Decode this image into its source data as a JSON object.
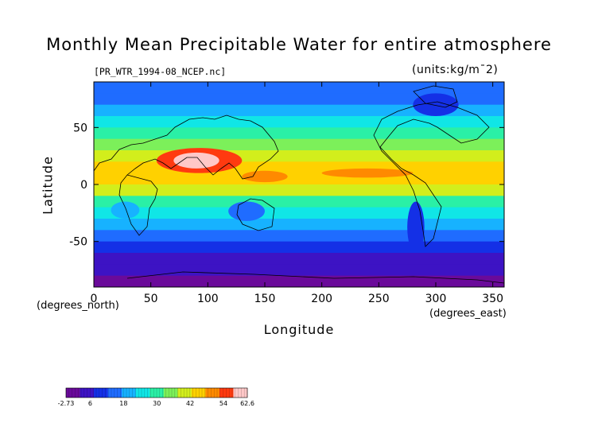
{
  "chart_data": {
    "type": "heatmap",
    "title": "Monthly Mean Precipitable Water for entire atmosphere",
    "subtitle": "[PR_WTR_1994-08_NCEP.nc]",
    "units_label": "(units:kg/m¯2)",
    "xlabel": "Longitude",
    "ylabel": "Latitude",
    "x_unit": "(degrees_east)",
    "y_unit": "(degrees_north)",
    "xlim": [
      0,
      360
    ],
    "ylim": [
      -90,
      90
    ],
    "x_ticks": [
      0,
      50,
      100,
      150,
      200,
      250,
      300,
      350
    ],
    "y_ticks": [
      -50,
      0,
      50
    ],
    "lat_profile": [
      {
        "lat": 90,
        "value": 12
      },
      {
        "lat": 80,
        "value": 13
      },
      {
        "lat": 70,
        "value": 17
      },
      {
        "lat": 60,
        "value": 21
      },
      {
        "lat": 50,
        "value": 25
      },
      {
        "lat": 40,
        "value": 30
      },
      {
        "lat": 30,
        "value": 38
      },
      {
        "lat": 20,
        "value": 44
      },
      {
        "lat": 10,
        "value": 47
      },
      {
        "lat": 0,
        "value": 42
      },
      {
        "lat": -10,
        "value": 35
      },
      {
        "lat": -20,
        "value": 28
      },
      {
        "lat": -30,
        "value": 22
      },
      {
        "lat": -40,
        "value": 17
      },
      {
        "lat": -50,
        "value": 13
      },
      {
        "lat": -60,
        "value": 9
      },
      {
        "lat": -70,
        "value": 4
      },
      {
        "lat": -80,
        "value": 1
      },
      {
        "lat": -90,
        "value": 0
      }
    ],
    "regions": [
      {
        "lon": [
          55,
          130
        ],
        "lat": [
          10,
          32
        ],
        "value": 56
      },
      {
        "lon": [
          70,
          110
        ],
        "lat": [
          14,
          28
        ],
        "value": 60
      },
      {
        "lon": [
          130,
          170
        ],
        "lat": [
          2,
          12
        ],
        "value": 52
      },
      {
        "lon": [
          200,
          280
        ],
        "lat": [
          6,
          14
        ],
        "value": 51
      },
      {
        "lon": [
          275,
          290
        ],
        "lat": [
          -60,
          -15
        ],
        "value": 10
      },
      {
        "lon": [
          15,
          40
        ],
        "lat": [
          -30,
          -15
        ],
        "value": 18
      },
      {
        "lon": [
          118,
          150
        ],
        "lat": [
          -32,
          -15
        ],
        "value": 14
      },
      {
        "lon": [
          280,
          320
        ],
        "lat": [
          60,
          80
        ],
        "value": 8
      }
    ],
    "colorbar": {
      "min": -2.73,
      "max": 62.6,
      "tick_labels": [
        "-2.73",
        "6",
        "18",
        "30",
        "42",
        "54",
        "62.6"
      ],
      "tick_values": [
        -2.73,
        6,
        18,
        30,
        42,
        54,
        62.6
      ],
      "colors": [
        "#6a0a9a",
        "#3d13c4",
        "#1430e6",
        "#1f6cff",
        "#17b2ff",
        "#10e6e6",
        "#2af0a6",
        "#7cf05a",
        "#d2ee1c",
        "#ffd100",
        "#ff8a00",
        "#ff3a10",
        "#ffc8c8"
      ]
    }
  }
}
